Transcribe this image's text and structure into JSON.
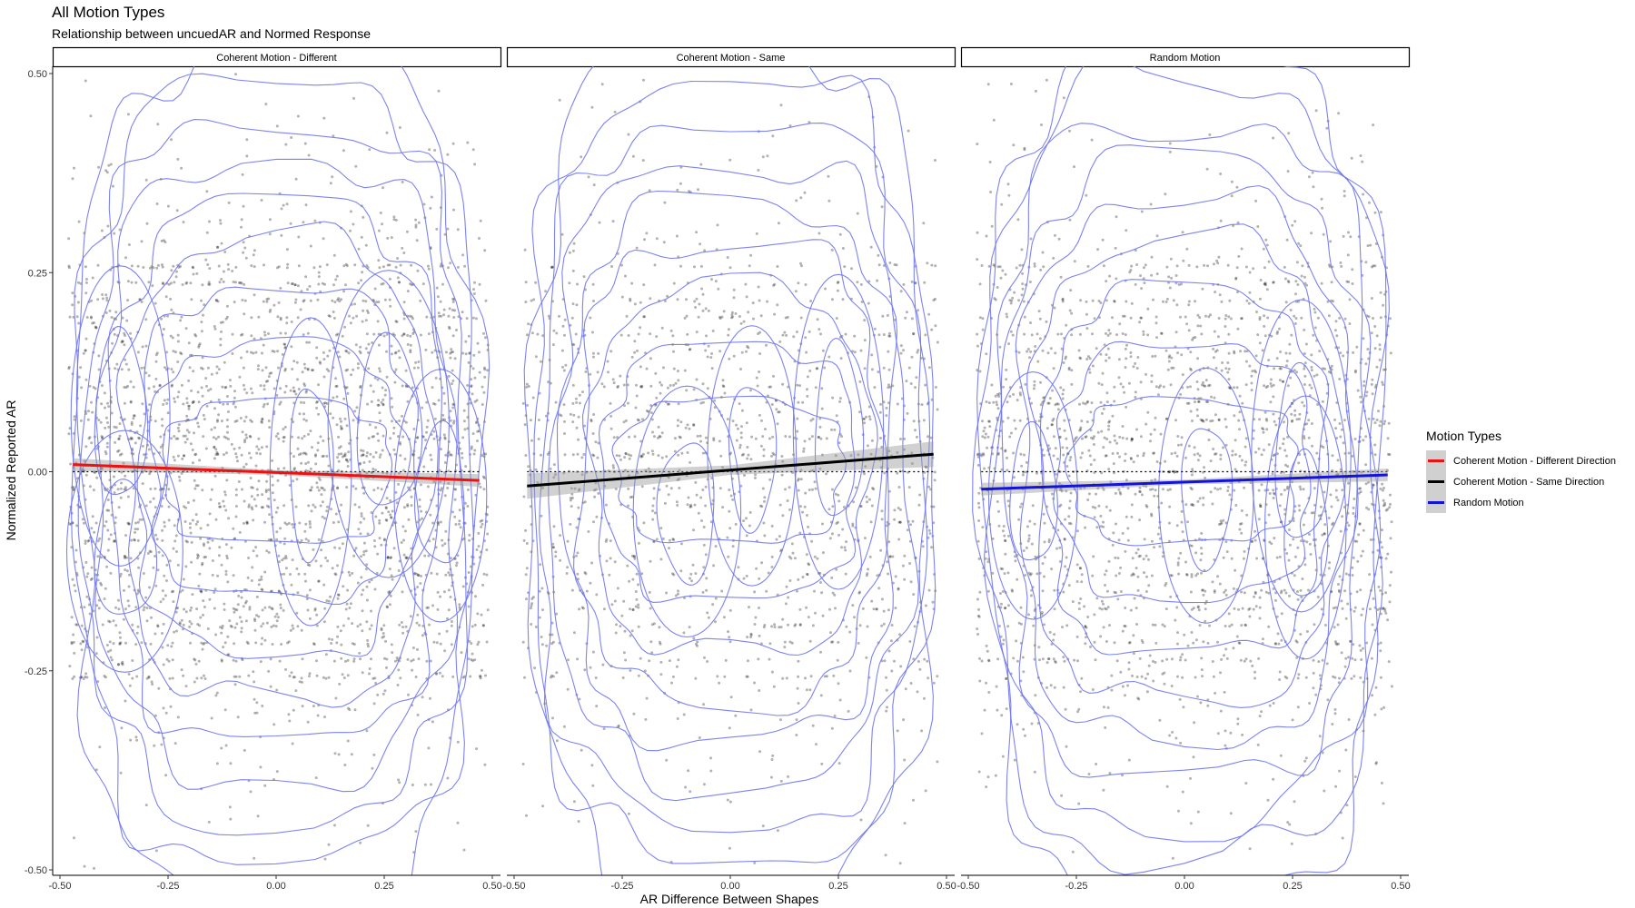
{
  "title": "All Motion Types",
  "subtitle": "Relationship between uncuedAR and Normed Response",
  "chart_data": {
    "type": "scatter",
    "title": "All Motion Types",
    "subtitle": "Relationship between uncuedAR and Normed Response",
    "xlabel": "AR Difference Between Shapes",
    "ylabel": "Normalized Reported AR",
    "xlim": [
      -0.5,
      0.5
    ],
    "ylim": [
      -0.5,
      0.5
    ],
    "x_ticks": [
      "-0.50",
      "-0.25",
      "0.00",
      "0.25",
      "0.50"
    ],
    "y_ticks": [
      "-0.50",
      "-0.25",
      "0.00",
      "0.25",
      "0.50"
    ],
    "grid": false,
    "reference_line": {
      "y": 0,
      "style": "dotted",
      "color": "#000000"
    },
    "point_color": "#000000",
    "point_alpha": 0.3,
    "contour_color": "#6f76f0",
    "legend": {
      "title": "Motion Types",
      "position": "right",
      "entries": [
        {
          "label": "Coherent Motion - Different Direction",
          "color": "#ee1111"
        },
        {
          "label": "Coherent Motion - Same Direction",
          "color": "#000000"
        },
        {
          "label": "Random Motion",
          "color": "#1313dd"
        }
      ]
    },
    "panels": [
      {
        "label": "Coherent Motion - Different",
        "series": "Coherent Motion - Different Direction",
        "fit_color": "#ee1111",
        "fit": {
          "x": [
            -0.47,
            0.47
          ],
          "y": [
            0.009,
            -0.011
          ]
        },
        "ci_halfwidth": 0.005,
        "point_count": 2700,
        "point_x_range": [
          -0.48,
          0.49
        ],
        "contour_centers": [
          [
            -0.36,
            0.07
          ],
          [
            0.08,
            0.0
          ],
          [
            0.26,
            0.06
          ],
          [
            -0.35,
            -0.1
          ],
          [
            0.38,
            -0.03
          ]
        ]
      },
      {
        "label": "Coherent Motion - Same",
        "series": "Coherent Motion - Same Direction",
        "fit_color": "#000000",
        "fit": {
          "x": [
            -0.47,
            0.47
          ],
          "y": [
            -0.018,
            0.022
          ]
        },
        "ci_halfwidth": 0.01,
        "point_count": 1500,
        "point_x_range": [
          -0.48,
          0.48
        ],
        "contour_centers": [
          [
            -0.1,
            -0.05
          ],
          [
            0.05,
            0.02
          ],
          [
            0.25,
            0.05
          ]
        ]
      },
      {
        "label": "Random Motion",
        "series": "Random Motion",
        "fit_color": "#1313dd",
        "fit": {
          "x": [
            -0.47,
            0.47
          ],
          "y": [
            -0.022,
            -0.004
          ]
        },
        "ci_halfwidth": 0.005,
        "point_count": 2200,
        "point_x_range": [
          -0.48,
          0.48
        ],
        "contour_centers": [
          [
            -0.35,
            -0.03
          ],
          [
            0.05,
            -0.03
          ],
          [
            0.27,
            0.02
          ],
          [
            0.28,
            -0.07
          ]
        ]
      }
    ]
  }
}
